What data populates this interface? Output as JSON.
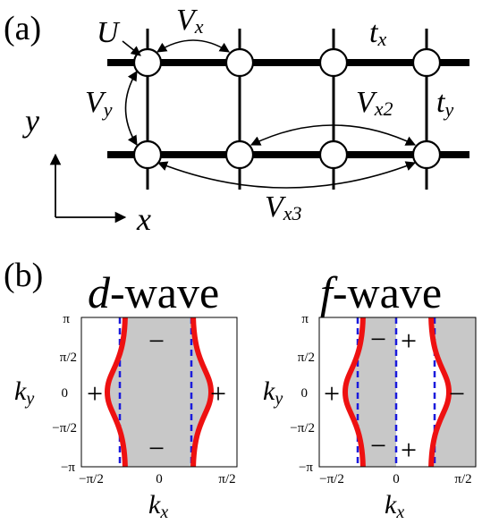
{
  "panel_a": {
    "label": "(a)",
    "labels": {
      "U": "U",
      "Vx": "V",
      "Vx_sub": "x",
      "Vy": "V",
      "Vy_sub": "y",
      "Vx2": "V",
      "Vx2_sub": "x2",
      "Vx3": "V",
      "Vx3_sub": "x3",
      "tx": "t",
      "tx_sub": "x",
      "ty": "t",
      "ty_sub": "y"
    },
    "axes": {
      "y": "y",
      "x": "x"
    }
  },
  "panel_b": {
    "label": "(b)",
    "d_wave": {
      "title_prefix": "d",
      "title_suffix": "-wave",
      "signs": [
        "+",
        "−",
        "−",
        "+"
      ],
      "y_ticks": [
        "π",
        "π/2",
        "0",
        "−π/2",
        "−π"
      ],
      "x_ticks": [
        "−π/2",
        "0",
        "π/2"
      ],
      "ylabel": "k",
      "ylabel_sub": "y",
      "xlabel": "k",
      "xlabel_sub": "x"
    },
    "f_wave": {
      "title_prefix": "f",
      "title_suffix": "-wave",
      "signs": [
        "+",
        "−",
        "+",
        "−",
        "+",
        "−"
      ],
      "y_ticks": [
        "π",
        "π/2",
        "0",
        "−π/2",
        "−π"
      ],
      "x_ticks": [
        "−π/2",
        "0",
        "π/2"
      ],
      "ylabel": "k",
      "ylabel_sub": "y",
      "xlabel": "k",
      "xlabel_sub": "x"
    },
    "colors": {
      "fermi": "#ee1111",
      "node": "#1a1adc",
      "shade": "#c8c8c8"
    }
  }
}
